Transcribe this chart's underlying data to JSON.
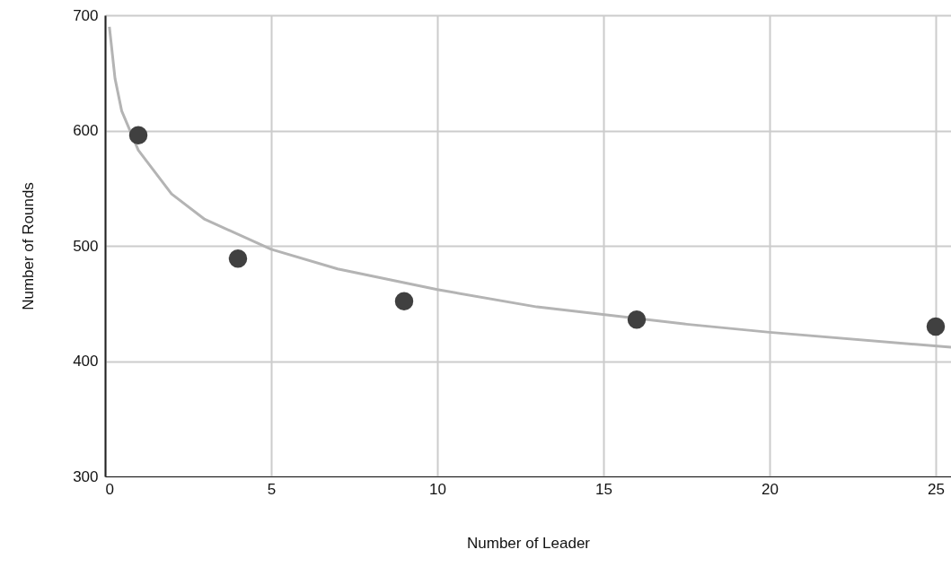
{
  "chart_data": {
    "type": "scatter",
    "xlabel": "Number of Leader",
    "ylabel": "Number of Rounds",
    "xlim": [
      0,
      25.46
    ],
    "xticks": [
      0,
      5,
      10,
      15,
      20,
      25
    ],
    "ylim": [
      300,
      700
    ],
    "yticks": [
      300,
      400,
      500,
      600,
      700
    ],
    "grid": true,
    "marker": "circle",
    "series": [
      {
        "color": "#404040",
        "x": [
          1,
          4,
          9,
          16,
          25
        ],
        "values": [
          596,
          489,
          452,
          436,
          430
        ]
      },
      {
        "type": "line",
        "color": "#b4b4b4",
        "line_style": "solid",
        "marker": "none",
        "x": [
          0.13,
          0.3,
          0.5,
          1,
          2,
          3,
          5,
          7,
          10,
          13,
          17.5,
          20,
          25.46
        ],
        "values": [
          690,
          645,
          617,
          583,
          545,
          523,
          497,
          480,
          462,
          447,
          432,
          425,
          412
        ]
      }
    ]
  }
}
